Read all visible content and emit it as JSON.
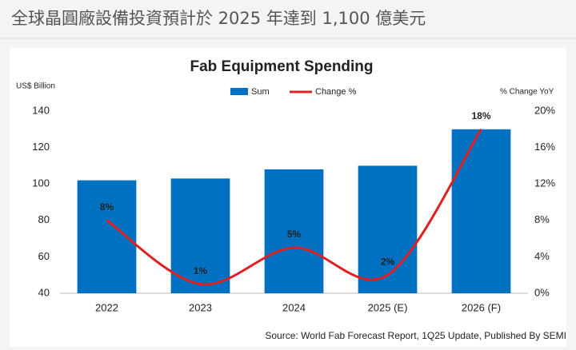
{
  "header": {
    "title": "全球晶圓廠設備投資預計於 2025 年達到 1,100 億美元"
  },
  "chart_data": {
    "type": "bar",
    "title": "Fab Equipment Spending",
    "y_label": "US$ Billion",
    "y2_label": "% Change YoY",
    "categories": [
      "2022",
      "2023",
      "2024",
      "2025 (E)",
      "2026 (F)"
    ],
    "series": [
      {
        "name": "Sum",
        "type": "bar",
        "color": "#0070c0",
        "values": [
          102,
          103,
          108,
          110,
          130
        ]
      },
      {
        "name": "Change %",
        "type": "line",
        "axis": "y2",
        "color": "#e02020",
        "values": [
          8,
          1,
          5,
          2,
          18
        ],
        "value_labels": [
          "8%",
          "1%",
          "5%",
          "2%",
          "18%"
        ]
      }
    ],
    "ylim": [
      40,
      140
    ],
    "yticks": [
      40,
      60,
      80,
      100,
      120,
      140
    ],
    "y2lim": [
      0,
      20
    ],
    "y2ticks": [
      {
        "value": 0,
        "label": "0%"
      },
      {
        "value": 4,
        "label": "4%"
      },
      {
        "value": 8,
        "label": "8%"
      },
      {
        "value": 12,
        "label": "12%"
      },
      {
        "value": 16,
        "label": "16%"
      },
      {
        "value": 20,
        "label": "20%"
      }
    ],
    "source": "Source: World Fab Forecast Report, 1Q25 Update, Published By SEMI"
  }
}
